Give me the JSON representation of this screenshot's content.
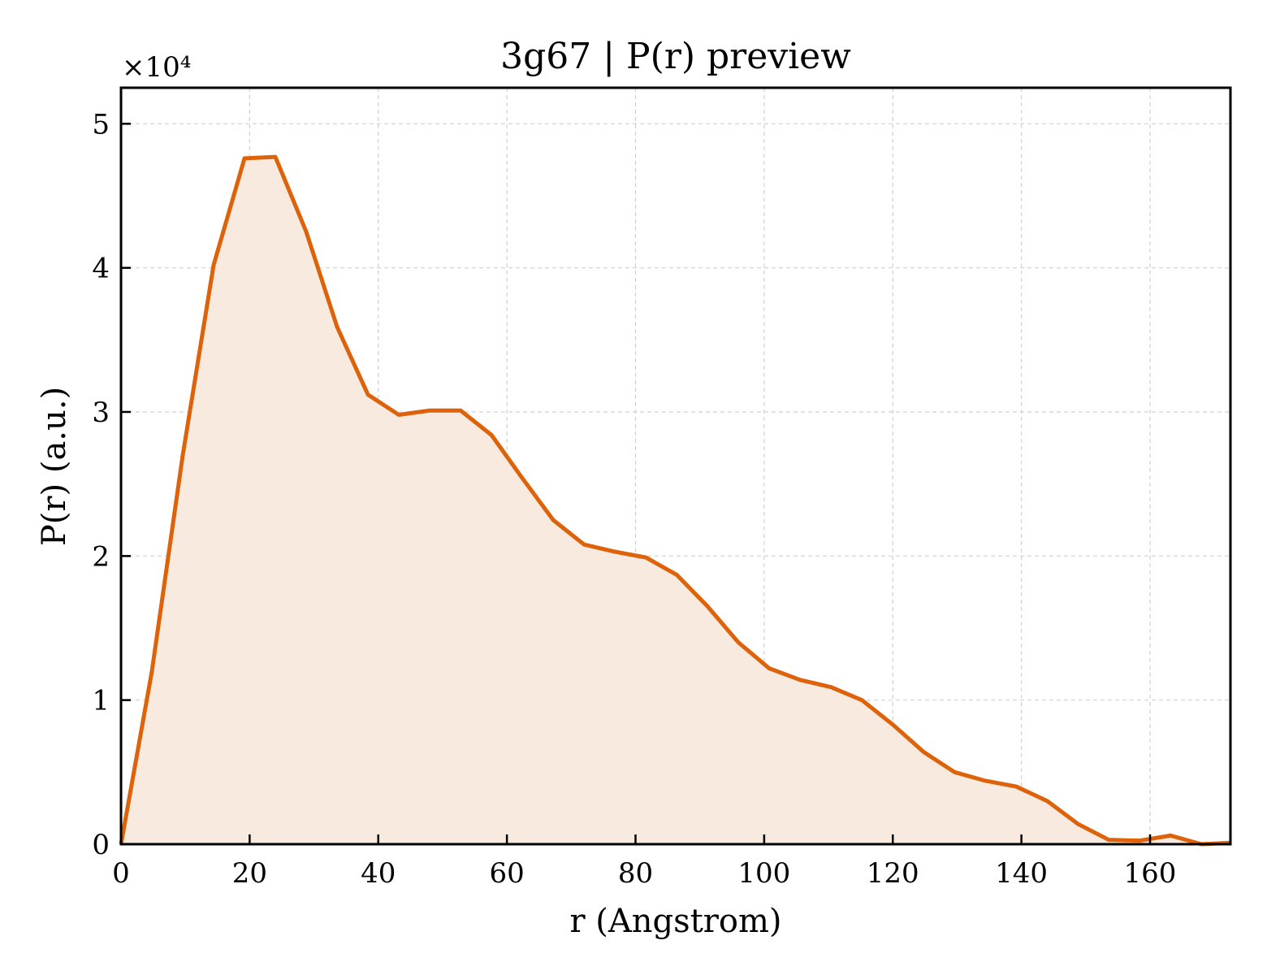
{
  "chart_data": {
    "type": "area",
    "title": "3g67 | P(r) preview",
    "xlabel": "r (Angstrom)",
    "ylabel": "P(r) (a.u.)",
    "y_multiplier_label": "×10⁴",
    "y_scale_factor": 10000,
    "xlim": [
      0,
      172.5
    ],
    "ylim": [
      0,
      52500
    ],
    "x_ticks": [
      0,
      20,
      40,
      60,
      80,
      100,
      120,
      140,
      160
    ],
    "x_tick_labels": [
      "0",
      "20",
      "40",
      "60",
      "80",
      "100",
      "120",
      "140",
      "160"
    ],
    "y_ticks": [
      0,
      10000,
      20000,
      30000,
      40000,
      50000
    ],
    "y_tick_labels": [
      "0",
      "1",
      "2",
      "3",
      "4",
      "5"
    ],
    "grid": true,
    "colors": {
      "line": "#dd620a",
      "fill": "#f9eadf",
      "grid": "#d0d0d0",
      "axes": "#000000"
    },
    "series": [
      {
        "x": [
          0,
          4.8,
          9.6,
          14.4,
          19.2,
          24.0,
          28.8,
          33.6,
          38.4,
          43.2,
          48.0,
          52.8,
          57.6,
          62.4,
          67.2,
          72.0,
          76.8,
          81.6,
          86.4,
          91.2,
          96.0,
          100.8,
          105.6,
          110.4,
          115.2,
          120.0,
          124.8,
          129.6,
          134.4,
          139.2,
          144.0,
          148.8,
          153.6,
          158.4,
          163.2,
          168.0,
          172.5
        ],
        "y": [
          0,
          12000,
          27000,
          40200,
          47600,
          47700,
          42500,
          35900,
          31200,
          29800,
          30100,
          30100,
          28400,
          25400,
          22500,
          20800,
          20300,
          19900,
          18700,
          16500,
          14000,
          12200,
          11400,
          10900,
          10000,
          8300,
          6400,
          5000,
          4400,
          4000,
          3000,
          1400,
          300,
          250,
          600,
          0,
          100
        ]
      }
    ]
  }
}
